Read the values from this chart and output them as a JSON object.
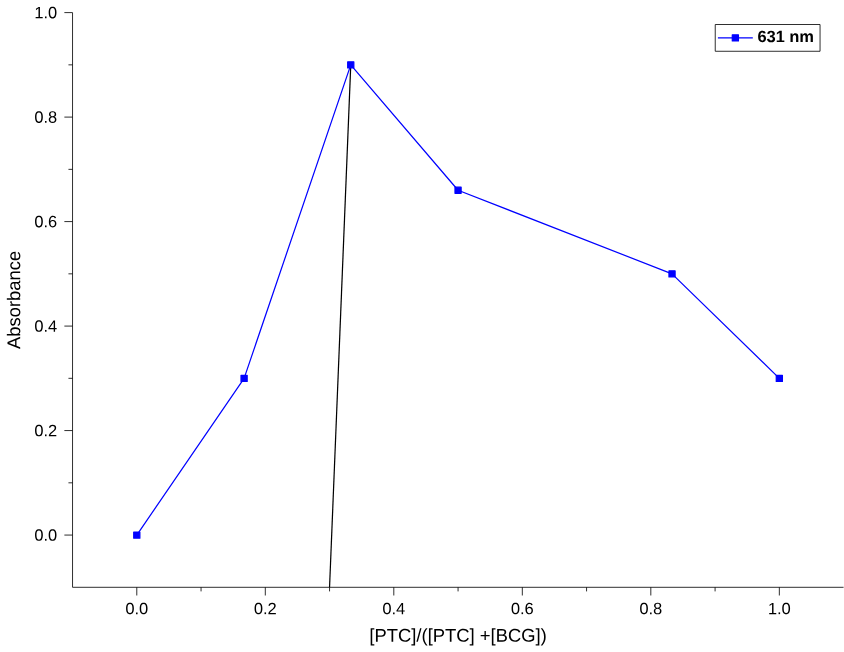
{
  "chart_data": {
    "type": "line",
    "xlabel": "[PTC]/([PTC] +[BCG])",
    "ylabel": "Absorbance",
    "xlim": [
      -0.1,
      1.1
    ],
    "ylim": [
      -0.1,
      1.0
    ],
    "xticks": [
      {
        "value": 0,
        "label": "0.0"
      },
      0.2,
      0.4,
      0.6,
      0.8,
      {
        "value": 1,
        "label": "1.0"
      }
    ],
    "yticks": [
      {
        "value": 0,
        "label": "0.0"
      },
      0.2,
      0.4,
      0.6,
      0.8,
      {
        "value": 1,
        "label": "1.0"
      }
    ],
    "legend": "top right",
    "grid": false,
    "series": [
      {
        "name": "631 nm",
        "color": "#0000ff",
        "marker": "square",
        "x": [
          0,
          0.167,
          0.333,
          0.5,
          0.833,
          1.0
        ],
        "values": [
          0,
          0.3,
          0.9,
          0.66,
          0.5,
          0.3
        ]
      },
      {
        "color": "#000000",
        "marker": "none",
        "x": [
          0.3,
          0.333
        ],
        "values": [
          -0.1,
          0.9
        ]
      }
    ]
  }
}
